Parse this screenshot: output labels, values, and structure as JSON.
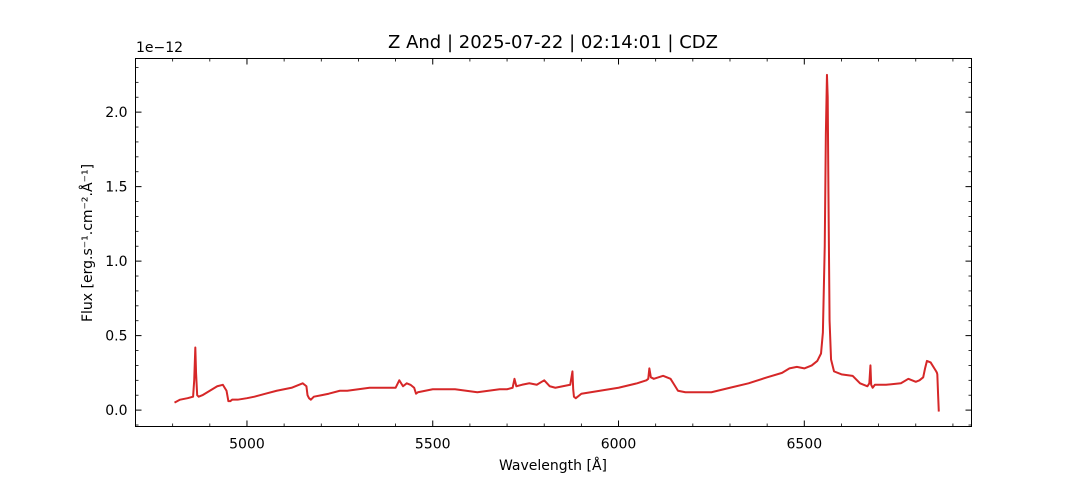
{
  "chart_data": {
    "type": "line",
    "title": "Z And | 2025-07-22 | 02:14:01 | CDZ",
    "xlabel": "Wavelength [Å]",
    "ylabel": "Flux [erg.s⁻¹.cm⁻².Å⁻¹]",
    "y_offset_label": "1e−12",
    "y_multiplier": 1e-12,
    "xlim": [
      4700,
      6950
    ],
    "ylim": [
      -0.11,
      2.36
    ],
    "x_ticks": [
      5000,
      5500,
      6000,
      6500
    ],
    "x_tick_labels": [
      "5000",
      "5500",
      "6000",
      "6500"
    ],
    "y_ticks": [
      0.0,
      0.5,
      1.0,
      1.5,
      2.0
    ],
    "y_tick_labels": [
      "0.0",
      "0.5",
      "1.0",
      "1.5",
      "2.0"
    ],
    "x_minor_step": 100,
    "y_minor_step": 0.1,
    "grid": false,
    "ticks_direction": "in",
    "series": [
      {
        "color": "#d62728",
        "x": [
          4805,
          4820,
          4840,
          4855,
          4858,
          4861,
          4863,
          4866,
          4870,
          4880,
          4900,
          4920,
          4935,
          4945,
          4950,
          4955,
          4960,
          4975,
          5000,
          5020,
          5050,
          5080,
          5100,
          5120,
          5140,
          5150,
          5155,
          5160,
          5163,
          5167,
          5172,
          5180,
          5200,
          5220,
          5250,
          5270,
          5300,
          5330,
          5360,
          5400,
          5410,
          5420,
          5430,
          5440,
          5450,
          5455,
          5460,
          5480,
          5500,
          5530,
          5560,
          5590,
          5620,
          5650,
          5680,
          5700,
          5715,
          5720,
          5725,
          5740,
          5760,
          5780,
          5800,
          5815,
          5830,
          5850,
          5870,
          5876,
          5878,
          5880,
          5885,
          5900,
          5950,
          6000,
          6050,
          6075,
          6080,
          6083,
          6087,
          6095,
          6120,
          6140,
          6150,
          6160,
          6180,
          6200,
          6250,
          6300,
          6350,
          6400,
          6440,
          6460,
          6480,
          6500,
          6520,
          6535,
          6545,
          6550,
          6555,
          6558,
          6561,
          6563,
          6565,
          6568,
          6572,
          6580,
          6600,
          6630,
          6650,
          6670,
          6675,
          6678,
          6680,
          6684,
          6690,
          6720,
          6760,
          6780,
          6800,
          6810,
          6820,
          6825,
          6830,
          6840,
          6850,
          6855,
          6857,
          6858,
          6860,
          6862
        ],
        "y": [
          0.05,
          0.07,
          0.08,
          0.09,
          0.2,
          0.42,
          0.25,
          0.1,
          0.09,
          0.1,
          0.13,
          0.16,
          0.17,
          0.13,
          0.06,
          0.06,
          0.07,
          0.07,
          0.08,
          0.09,
          0.11,
          0.13,
          0.14,
          0.15,
          0.17,
          0.18,
          0.17,
          0.16,
          0.1,
          0.08,
          0.07,
          0.09,
          0.1,
          0.11,
          0.13,
          0.13,
          0.14,
          0.15,
          0.15,
          0.15,
          0.2,
          0.16,
          0.18,
          0.17,
          0.15,
          0.11,
          0.12,
          0.13,
          0.14,
          0.14,
          0.14,
          0.13,
          0.12,
          0.13,
          0.14,
          0.14,
          0.15,
          0.21,
          0.16,
          0.17,
          0.18,
          0.17,
          0.2,
          0.16,
          0.15,
          0.16,
          0.17,
          0.26,
          0.14,
          0.09,
          0.08,
          0.11,
          0.13,
          0.15,
          0.18,
          0.2,
          0.21,
          0.28,
          0.22,
          0.21,
          0.23,
          0.21,
          0.17,
          0.13,
          0.12,
          0.12,
          0.12,
          0.15,
          0.18,
          0.22,
          0.25,
          0.28,
          0.29,
          0.28,
          0.3,
          0.33,
          0.38,
          0.52,
          1.1,
          1.85,
          2.25,
          2.1,
          1.45,
          0.6,
          0.34,
          0.26,
          0.24,
          0.23,
          0.18,
          0.16,
          0.18,
          0.3,
          0.17,
          0.15,
          0.17,
          0.17,
          0.18,
          0.21,
          0.19,
          0.2,
          0.22,
          0.28,
          0.33,
          0.32,
          0.28,
          0.26,
          0.25,
          0.24,
          0.11,
          -0.01
        ]
      }
    ]
  }
}
